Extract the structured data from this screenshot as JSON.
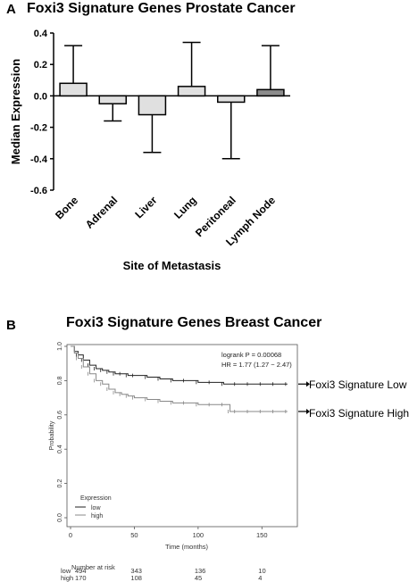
{
  "panel_a": {
    "letter": "A",
    "title": "Foxi3 Signature Genes Prostate Cancer"
  },
  "panel_b": {
    "letter": "B",
    "title": "Foxi3 Signature Genes Breast Cancer",
    "annotation_low": "Foxi3 Signature Low",
    "annotation_high": "Foxi3 Signature High",
    "risk_table": {
      "title": "Number at risk",
      "rows": [
        {
          "label": "low",
          "values": [
            "494",
            "343",
            "136",
            "10"
          ]
        },
        {
          "label": "high",
          "values": [
            "170",
            "108",
            "45",
            "4"
          ]
        }
      ]
    }
  },
  "colors": {
    "bar_light": "#e0e0e0",
    "bar_dark": "#8c8c8c",
    "km_low": "#222222",
    "km_high": "#888888"
  },
  "chart_data": [
    {
      "type": "bar",
      "title": "Foxi3 Signature Genes Prostate Cancer",
      "xlabel": "Site of Metastasis",
      "ylabel": "Median Expression",
      "ylim": [
        -0.6,
        0.4
      ],
      "yticks": [
        "-0.6",
        "-0.4",
        "-0.2",
        "0.0",
        "0.2",
        "0.4"
      ],
      "categories": [
        "Bone",
        "Adrenal",
        "Liver",
        "Lung",
        "Peritoneal",
        "Lymph Node"
      ],
      "values": [
        0.08,
        -0.05,
        -0.12,
        0.06,
        -0.04,
        0.04
      ],
      "error_upper": [
        0.32,
        -0.01,
        -0.12,
        0.34,
        -0.04,
        0.32
      ],
      "error_lower": [
        0.08,
        -0.16,
        -0.36,
        0.06,
        -0.4,
        0.04
      ],
      "bar_fill": [
        "light",
        "light",
        "light",
        "light",
        "light",
        "dark"
      ]
    },
    {
      "type": "line",
      "subtype": "kaplan-meier",
      "title": "Foxi3 Signature Genes Breast Cancer",
      "xlabel": "Time (months)",
      "ylabel": "Probability",
      "xlim": [
        0,
        175
      ],
      "ylim": [
        0,
        1.0
      ],
      "xticks": [
        "0",
        "50",
        "100",
        "150"
      ],
      "yticks": [
        "0.0",
        "0.2",
        "0.4",
        "0.6",
        "0.8",
        "1.0"
      ],
      "stats_line1": "logrank P = 0.00068",
      "stats_line2": "HR = 1.77 (1.27 − 2.47)",
      "legend_title": "Expression",
      "legend_position": "bottom-left",
      "series": [
        {
          "name": "low",
          "color": "km_low",
          "x": [
            0,
            3,
            6,
            10,
            15,
            20,
            25,
            30,
            35,
            40,
            45,
            50,
            60,
            70,
            80,
            90,
            100,
            110,
            120,
            130,
            140,
            150,
            160,
            170
          ],
          "y": [
            1.0,
            0.97,
            0.95,
            0.92,
            0.89,
            0.87,
            0.86,
            0.85,
            0.84,
            0.84,
            0.83,
            0.83,
            0.82,
            0.81,
            0.8,
            0.8,
            0.79,
            0.79,
            0.78,
            0.78,
            0.78,
            0.78,
            0.78,
            0.78
          ]
        },
        {
          "name": "high",
          "color": "km_high",
          "x": [
            0,
            3,
            6,
            10,
            15,
            20,
            25,
            30,
            35,
            40,
            45,
            50,
            60,
            70,
            80,
            90,
            100,
            110,
            120,
            125,
            130,
            140,
            150,
            160,
            170
          ],
          "y": [
            1.0,
            0.96,
            0.93,
            0.88,
            0.84,
            0.8,
            0.78,
            0.75,
            0.73,
            0.72,
            0.71,
            0.7,
            0.69,
            0.68,
            0.67,
            0.67,
            0.66,
            0.66,
            0.66,
            0.62,
            0.62,
            0.62,
            0.62,
            0.62,
            0.62
          ]
        }
      ]
    }
  ]
}
